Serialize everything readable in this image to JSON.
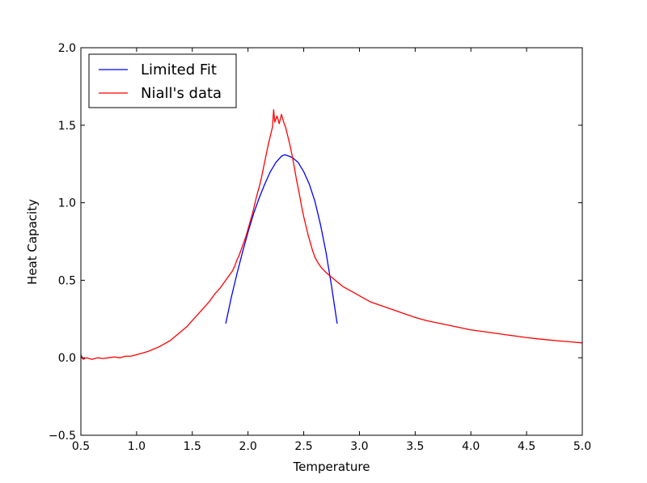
{
  "chart_data": {
    "type": "line",
    "title": "",
    "xlabel": "Temperature",
    "ylabel": "Heat Capacity",
    "xlim": [
      0.5,
      5.0
    ],
    "ylim": [
      -0.5,
      2.0
    ],
    "xticks": [
      "0.5",
      "1.0",
      "1.5",
      "2.0",
      "2.5",
      "3.0",
      "3.5",
      "4.0",
      "4.5",
      "5.0"
    ],
    "yticks": [
      "−0.5",
      "0.0",
      "0.5",
      "1.0",
      "1.5",
      "2.0"
    ],
    "grid": false,
    "legend_position": "top-left",
    "series": [
      {
        "name": "Limited Fit",
        "color": "#0000ff",
        "points": [
          [
            1.8,
            0.22
          ],
          [
            1.85,
            0.39
          ],
          [
            1.9,
            0.54
          ],
          [
            1.95,
            0.68
          ],
          [
            2.0,
            0.81
          ],
          [
            2.05,
            0.93
          ],
          [
            2.1,
            1.03
          ],
          [
            2.15,
            1.12
          ],
          [
            2.2,
            1.2
          ],
          [
            2.25,
            1.26
          ],
          [
            2.3,
            1.3
          ],
          [
            2.33,
            1.31
          ],
          [
            2.37,
            1.3
          ],
          [
            2.4,
            1.29
          ],
          [
            2.45,
            1.26
          ],
          [
            2.5,
            1.2
          ],
          [
            2.55,
            1.12
          ],
          [
            2.6,
            1.01
          ],
          [
            2.65,
            0.86
          ],
          [
            2.7,
            0.68
          ],
          [
            2.75,
            0.46
          ],
          [
            2.8,
            0.22
          ]
        ]
      },
      {
        "name": "Niall's data",
        "color": "#ff0000",
        "points": [
          [
            0.5,
            0.02
          ],
          [
            0.52,
            -0.01
          ],
          [
            0.55,
            0.0
          ],
          [
            0.6,
            -0.01
          ],
          [
            0.65,
            0.0
          ],
          [
            0.7,
            -0.005
          ],
          [
            0.75,
            0.0
          ],
          [
            0.8,
            0.005
          ],
          [
            0.85,
            0.0
          ],
          [
            0.9,
            0.01
          ],
          [
            0.95,
            0.01
          ],
          [
            1.0,
            0.02
          ],
          [
            1.05,
            0.03
          ],
          [
            1.1,
            0.04
          ],
          [
            1.15,
            0.055
          ],
          [
            1.2,
            0.07
          ],
          [
            1.25,
            0.09
          ],
          [
            1.3,
            0.11
          ],
          [
            1.35,
            0.14
          ],
          [
            1.4,
            0.17
          ],
          [
            1.45,
            0.2
          ],
          [
            1.5,
            0.24
          ],
          [
            1.55,
            0.28
          ],
          [
            1.6,
            0.32
          ],
          [
            1.65,
            0.36
          ],
          [
            1.7,
            0.41
          ],
          [
            1.75,
            0.45
          ],
          [
            1.8,
            0.5
          ],
          [
            1.83,
            0.53
          ],
          [
            1.86,
            0.56
          ],
          [
            1.88,
            0.59
          ],
          [
            1.9,
            0.63
          ],
          [
            1.92,
            0.66
          ],
          [
            1.94,
            0.7
          ],
          [
            1.96,
            0.74
          ],
          [
            1.98,
            0.78
          ],
          [
            2.0,
            0.83
          ],
          [
            2.02,
            0.88
          ],
          [
            2.04,
            0.93
          ],
          [
            2.06,
            0.99
          ],
          [
            2.08,
            1.05
          ],
          [
            2.1,
            1.1
          ],
          [
            2.12,
            1.16
          ],
          [
            2.14,
            1.23
          ],
          [
            2.16,
            1.3
          ],
          [
            2.18,
            1.37
          ],
          [
            2.2,
            1.43
          ],
          [
            2.22,
            1.49
          ],
          [
            2.23,
            1.6
          ],
          [
            2.24,
            1.52
          ],
          [
            2.26,
            1.56
          ],
          [
            2.28,
            1.51
          ],
          [
            2.3,
            1.57
          ],
          [
            2.32,
            1.52
          ],
          [
            2.34,
            1.48
          ],
          [
            2.36,
            1.42
          ],
          [
            2.38,
            1.36
          ],
          [
            2.4,
            1.29
          ],
          [
            2.42,
            1.21
          ],
          [
            2.44,
            1.13
          ],
          [
            2.46,
            1.06
          ],
          [
            2.48,
            0.98
          ],
          [
            2.5,
            0.91
          ],
          [
            2.52,
            0.85
          ],
          [
            2.54,
            0.79
          ],
          [
            2.56,
            0.74
          ],
          [
            2.58,
            0.69
          ],
          [
            2.6,
            0.65
          ],
          [
            2.63,
            0.61
          ],
          [
            2.66,
            0.58
          ],
          [
            2.7,
            0.55
          ],
          [
            2.75,
            0.52
          ],
          [
            2.8,
            0.49
          ],
          [
            2.85,
            0.46
          ],
          [
            2.9,
            0.44
          ],
          [
            2.95,
            0.42
          ],
          [
            3.0,
            0.4
          ],
          [
            3.05,
            0.38
          ],
          [
            3.1,
            0.36
          ],
          [
            3.2,
            0.335
          ],
          [
            3.3,
            0.31
          ],
          [
            3.4,
            0.285
          ],
          [
            3.5,
            0.26
          ],
          [
            3.6,
            0.24
          ],
          [
            3.7,
            0.225
          ],
          [
            3.8,
            0.21
          ],
          [
            3.9,
            0.195
          ],
          [
            4.0,
            0.18
          ],
          [
            4.1,
            0.17
          ],
          [
            4.2,
            0.16
          ],
          [
            4.3,
            0.15
          ],
          [
            4.4,
            0.14
          ],
          [
            4.5,
            0.13
          ],
          [
            4.6,
            0.122
          ],
          [
            4.7,
            0.115
          ],
          [
            4.8,
            0.108
          ],
          [
            4.9,
            0.102
          ],
          [
            5.0,
            0.096
          ]
        ]
      }
    ]
  }
}
